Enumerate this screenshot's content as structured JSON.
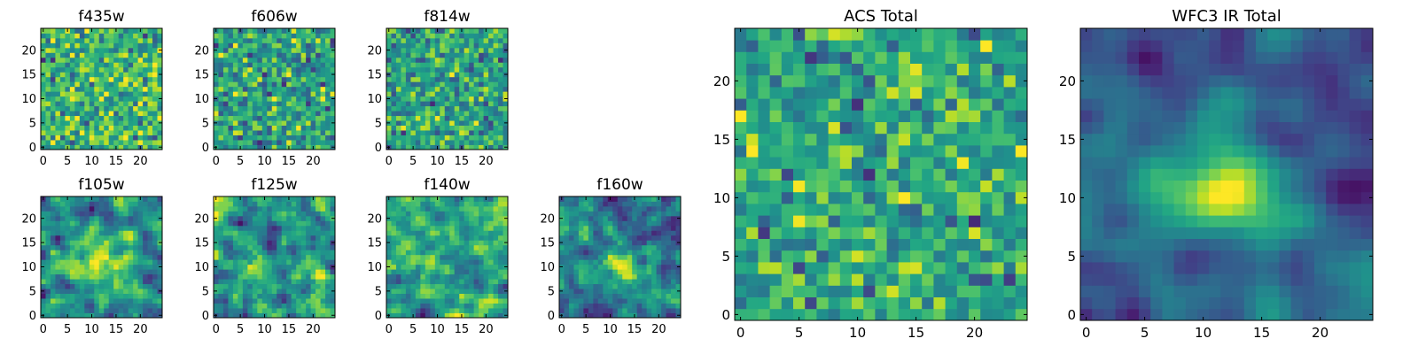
{
  "figure": {
    "layout": "mosaic of 9 heatmaps",
    "colormap": "viridis"
  },
  "chart_data": [
    {
      "type": "heatmap",
      "title": "f435w",
      "x_ticks": [
        0,
        5,
        10,
        15,
        20
      ],
      "y_ticks": [
        0,
        5,
        10,
        15,
        20
      ],
      "xlim": [
        0,
        25
      ],
      "ylim": [
        0,
        25
      ],
      "grid_size": 25,
      "noise_seed": 11,
      "structure": "white noise, mostly yellow-green with sparse dark pixels"
    },
    {
      "type": "heatmap",
      "title": "f606w",
      "x_ticks": [
        0,
        5,
        10,
        15,
        20
      ],
      "y_ticks": [
        0,
        5,
        10,
        15,
        20
      ],
      "xlim": [
        0,
        25
      ],
      "ylim": [
        0,
        25
      ],
      "grid_size": 25,
      "noise_seed": 23,
      "structure": "white noise, mixed teal and green"
    },
    {
      "type": "heatmap",
      "title": "f814w",
      "x_ticks": [
        0,
        5,
        10,
        15,
        20
      ],
      "y_ticks": [
        0,
        5,
        10,
        15,
        20
      ],
      "xlim": [
        0,
        25
      ],
      "ylim": [
        0,
        25
      ],
      "grid_size": 25,
      "noise_seed": 37,
      "structure": "white noise, brighter yellow"
    },
    {
      "type": "heatmap",
      "title": "f105w",
      "x_ticks": [
        0,
        5,
        10,
        15,
        20
      ],
      "y_ticks": [
        0,
        5,
        10,
        15,
        20
      ],
      "xlim": [
        0,
        25
      ],
      "ylim": [
        0,
        25
      ],
      "grid_size": 25,
      "noise_seed": 41,
      "structure": "correlated noise with central bright source"
    },
    {
      "type": "heatmap",
      "title": "f125w",
      "x_ticks": [
        0,
        5,
        10,
        15,
        20
      ],
      "y_ticks": [
        0,
        5,
        10,
        15,
        20
      ],
      "xlim": [
        0,
        25
      ],
      "ylim": [
        0,
        25
      ],
      "grid_size": 25,
      "noise_seed": 53,
      "structure": "correlated noise"
    },
    {
      "type": "heatmap",
      "title": "f140w",
      "x_ticks": [
        0,
        5,
        10,
        15,
        20
      ],
      "y_ticks": [
        0,
        5,
        10,
        15,
        20
      ],
      "xlim": [
        0,
        25
      ],
      "ylim": [
        0,
        25
      ],
      "grid_size": 25,
      "noise_seed": 67,
      "structure": "correlated noise"
    },
    {
      "type": "heatmap",
      "title": "f160w",
      "x_ticks": [
        0,
        5,
        10,
        15,
        20
      ],
      "y_ticks": [
        0,
        5,
        10,
        15,
        20
      ],
      "xlim": [
        0,
        25
      ],
      "ylim": [
        0,
        25
      ],
      "grid_size": 25,
      "noise_seed": 79,
      "structure": "correlated noise with central bright source"
    },
    {
      "type": "heatmap",
      "title": "ACS Total",
      "x_ticks": [
        0,
        5,
        10,
        15,
        20
      ],
      "y_ticks": [
        0,
        5,
        10,
        15,
        20
      ],
      "xlim": [
        0,
        25
      ],
      "ylim": [
        0,
        25
      ],
      "grid_size": 25,
      "noise_seed": 89,
      "structure": "white noise, mostly green with few dark pixels"
    },
    {
      "type": "heatmap",
      "title": "WFC3 IR Total",
      "x_ticks": [
        0,
        5,
        10,
        15,
        20
      ],
      "y_ticks": [
        0,
        5,
        10,
        15,
        20
      ],
      "xlim": [
        0,
        25
      ],
      "ylim": [
        0,
        25
      ],
      "grid_size": 25,
      "noise_seed": 97,
      "structure": "smoothed noise with bright central source near (11,11)"
    }
  ]
}
